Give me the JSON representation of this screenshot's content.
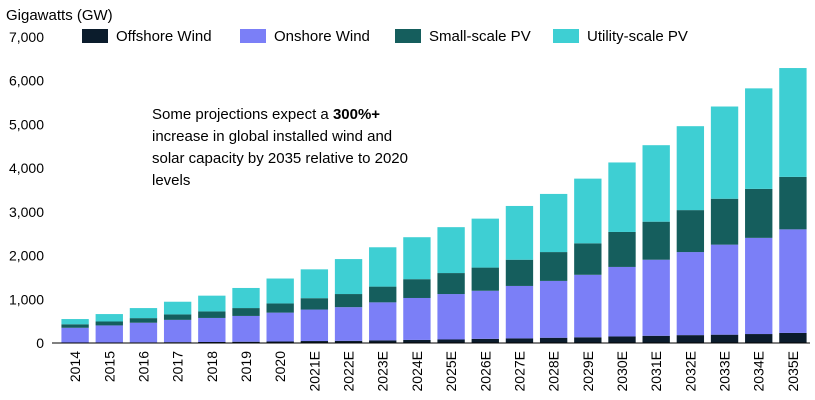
{
  "chart_data": {
    "type": "bar",
    "stacked": true,
    "ylabel": "Gigawatts (GW)",
    "ylim": [
      0,
      7000
    ],
    "yticks": [
      0,
      1000,
      2000,
      3000,
      4000,
      5000,
      6000,
      7000
    ],
    "ytick_labels": [
      "0",
      "1,000",
      "2,000",
      "3,000",
      "4,000",
      "5,000",
      "6,000",
      "7,000"
    ],
    "grid": false,
    "legend_position": "top",
    "categories": [
      "2014",
      "2015",
      "2016",
      "2017",
      "2018",
      "2019",
      "2020",
      "2021E",
      "2022E",
      "2023E",
      "2024E",
      "2025E",
      "2026E",
      "2027E",
      "2028E",
      "2029E",
      "2030E",
      "2031E",
      "2032E",
      "2033E",
      "2034E",
      "2035E"
    ],
    "series": [
      {
        "name": "Offshore Wind",
        "color": "#0b1c2c",
        "values": [
          8,
          12,
          14,
          19,
          23,
          29,
          35,
          45,
          50,
          60,
          70,
          80,
          95,
          105,
          120,
          130,
          150,
          165,
          180,
          190,
          205,
          230
        ]
      },
      {
        "name": "Onshore Wind",
        "color": "#7b7ff7",
        "values": [
          340,
          390,
          450,
          510,
          550,
          590,
          660,
          720,
          770,
          870,
          960,
          1040,
          1100,
          1200,
          1300,
          1430,
          1590,
          1740,
          1900,
          2060,
          2200,
          2370
        ]
      },
      {
        "name": "Small-scale PV",
        "color": "#155e5d",
        "values": [
          80,
          90,
          105,
          125,
          150,
          180,
          210,
          260,
          300,
          360,
          430,
          480,
          530,
          600,
          660,
          720,
          800,
          870,
          960,
          1050,
          1120,
          1200
        ]
      },
      {
        "name": "Utility-scale PV",
        "color": "#3ecfd3",
        "values": [
          120,
          170,
          230,
          290,
          360,
          460,
          570,
          660,
          800,
          900,
          960,
          1050,
          1120,
          1230,
          1330,
          1480,
          1590,
          1750,
          1920,
          2110,
          2300,
          2490
        ]
      }
    ]
  },
  "annotation": {
    "pre": "Some projections expect a ",
    "bold": "300%+",
    "post": " increase in global installed wind and solar capacity by 2035 relative to 2020 levels"
  }
}
